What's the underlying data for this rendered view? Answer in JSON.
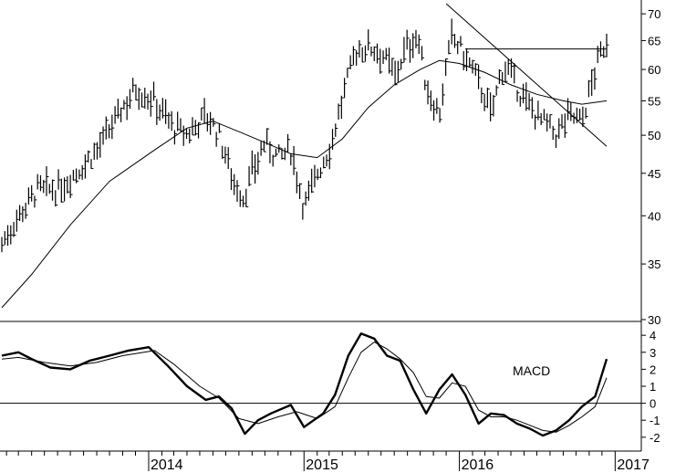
{
  "chart_data": [
    {
      "type": "ohlc",
      "title": "",
      "yscale": "log",
      "ylim": [
        30,
        72
      ],
      "yticks": [
        30,
        35,
        40,
        45,
        50,
        55,
        60,
        65,
        70
      ],
      "x_start": "2013-01-21",
      "x_end": "2016-12-12",
      "year_labels": [
        "2014",
        "2015",
        "2016",
        "2017"
      ],
      "year_dates": [
        "2014-01-01",
        "2015-01-01",
        "2016-01-01",
        "2017-01-01"
      ],
      "series": [
        {
          "name": "",
          "style": "price-bars",
          "points": [
            [
              "2013-01-21",
              37
            ],
            [
              "2013-03-01",
              40
            ],
            [
              "2013-04-15",
              43
            ],
            [
              "2013-06-01",
              43
            ],
            [
              "2013-08-01",
              46
            ],
            [
              "2013-09-15",
              49
            ],
            [
              "2013-11-01",
              54
            ],
            [
              "2013-12-01",
              57
            ],
            [
              "2014-01-15",
              55
            ],
            [
              "2014-03-01",
              51
            ],
            [
              "2014-04-01",
              50
            ],
            [
              "2014-05-15",
              53
            ],
            [
              "2014-06-15",
              50
            ],
            [
              "2014-07-20",
              44
            ],
            [
              "2014-08-10",
              42
            ],
            [
              "2014-09-01",
              45
            ],
            [
              "2014-10-01",
              49
            ],
            [
              "2014-11-01",
              47
            ],
            [
              "2014-12-01",
              48
            ],
            [
              "2015-01-01",
              41
            ],
            [
              "2015-02-01",
              45
            ],
            [
              "2015-03-01",
              48
            ],
            [
              "2015-04-01",
              55
            ],
            [
              "2015-05-01",
              63
            ],
            [
              "2015-06-01",
              64
            ],
            [
              "2015-07-01",
              63
            ],
            [
              "2015-08-01",
              59
            ],
            [
              "2015-09-01",
              64
            ],
            [
              "2015-09-25",
              66
            ],
            [
              "2015-10-15",
              57
            ],
            [
              "2015-11-15",
              53
            ],
            [
              "2015-12-15",
              66
            ],
            [
              "2016-01-15",
              62
            ],
            [
              "2016-02-15",
              58
            ],
            [
              "2016-03-15",
              53
            ],
            [
              "2016-04-15",
              61
            ],
            [
              "2016-05-15",
              57
            ],
            [
              "2016-06-15",
              54
            ],
            [
              "2016-07-15",
              52
            ],
            [
              "2016-08-15",
              50
            ],
            [
              "2016-09-15",
              53
            ],
            [
              "2016-10-15",
              52
            ],
            [
              "2016-11-01",
              56
            ],
            [
              "2016-11-15",
              60
            ],
            [
              "2016-12-01",
              63
            ],
            [
              "2016-12-12",
              65
            ]
          ]
        },
        {
          "name": "",
          "style": "moving-average",
          "points": [
            [
              "2013-01-21",
              31
            ],
            [
              "2013-04-01",
              34
            ],
            [
              "2013-07-01",
              39
            ],
            [
              "2013-10-01",
              44
            ],
            [
              "2014-01-15",
              48
            ],
            [
              "2014-04-01",
              51
            ],
            [
              "2014-06-01",
              52
            ],
            [
              "2014-08-01",
              50.5
            ],
            [
              "2014-10-01",
              49
            ],
            [
              "2014-12-01",
              47.5
            ],
            [
              "2015-02-01",
              47
            ],
            [
              "2015-04-01",
              49.5
            ],
            [
              "2015-06-01",
              54
            ],
            [
              "2015-08-01",
              57.5
            ],
            [
              "2015-10-01",
              60
            ],
            [
              "2015-11-15",
              61.5
            ],
            [
              "2016-01-01",
              61
            ],
            [
              "2016-03-01",
              59.5
            ],
            [
              "2016-05-01",
              57.5
            ],
            [
              "2016-07-01",
              56
            ],
            [
              "2016-09-01",
              55
            ],
            [
              "2016-10-15",
              54.5
            ],
            [
              "2016-12-12",
              55
            ]
          ]
        },
        {
          "name": "",
          "style": "trendline",
          "points": [
            [
              "2015-12-01",
              72
            ],
            [
              "2016-12-12",
              48.5
            ]
          ]
        },
        {
          "name": "",
          "style": "horizontal-line",
          "points": [
            [
              "2016-01-15",
              63.5
            ],
            [
              "2016-12-12",
              63.5
            ]
          ]
        }
      ]
    },
    {
      "type": "line",
      "title": "MACD",
      "ylim": [
        -2.6,
        4.6
      ],
      "yticks": [
        -2,
        -1,
        0,
        1,
        2,
        3,
        4
      ],
      "zero_line": true,
      "series": [
        {
          "name": "",
          "style": "macd",
          "points": [
            [
              "2013-01-21",
              2.8
            ],
            [
              "2013-03-01",
              3.0
            ],
            [
              "2013-04-01",
              2.6
            ],
            [
              "2013-05-15",
              2.1
            ],
            [
              "2013-07-01",
              2.0
            ],
            [
              "2013-08-15",
              2.5
            ],
            [
              "2013-10-01",
              2.8
            ],
            [
              "2013-11-15",
              3.1
            ],
            [
              "2014-01-01",
              3.3
            ],
            [
              "2014-02-15",
              2.2
            ],
            [
              "2014-04-01",
              1.0
            ],
            [
              "2014-05-15",
              0.2
            ],
            [
              "2014-06-15",
              0.4
            ],
            [
              "2014-07-15",
              -0.3
            ],
            [
              "2014-08-15",
              -1.8
            ],
            [
              "2014-09-15",
              -1.0
            ],
            [
              "2014-10-15",
              -0.6
            ],
            [
              "2014-12-01",
              -0.1
            ],
            [
              "2015-01-01",
              -1.4
            ],
            [
              "2015-02-15",
              -0.6
            ],
            [
              "2015-03-15",
              0.5
            ],
            [
              "2015-04-15",
              2.8
            ],
            [
              "2015-05-15",
              4.1
            ],
            [
              "2015-06-15",
              3.8
            ],
            [
              "2015-07-15",
              2.8
            ],
            [
              "2015-08-15",
              2.5
            ],
            [
              "2015-09-15",
              0.8
            ],
            [
              "2015-10-15",
              -0.6
            ],
            [
              "2015-11-15",
              0.8
            ],
            [
              "2015-12-15",
              1.7
            ],
            [
              "2016-01-15",
              0.5
            ],
            [
              "2016-02-15",
              -1.2
            ],
            [
              "2016-03-15",
              -0.6
            ],
            [
              "2016-04-15",
              -0.7
            ],
            [
              "2016-05-15",
              -1.2
            ],
            [
              "2016-06-15",
              -1.5
            ],
            [
              "2016-07-15",
              -1.9
            ],
            [
              "2016-08-15",
              -1.6
            ],
            [
              "2016-09-15",
              -1.0
            ],
            [
              "2016-10-15",
              -0.2
            ],
            [
              "2016-11-15",
              0.4
            ],
            [
              "2016-12-12",
              2.6
            ]
          ]
        },
        {
          "name": "",
          "style": "signal",
          "points": [
            [
              "2013-01-21",
              2.6
            ],
            [
              "2013-03-01",
              2.7
            ],
            [
              "2013-05-01",
              2.4
            ],
            [
              "2013-07-01",
              2.2
            ],
            [
              "2013-09-01",
              2.4
            ],
            [
              "2013-11-01",
              2.8
            ],
            [
              "2014-01-15",
              3.1
            ],
            [
              "2014-03-01",
              2.3
            ],
            [
              "2014-05-01",
              1.0
            ],
            [
              "2014-06-15",
              0.3
            ],
            [
              "2014-08-01",
              -0.9
            ],
            [
              "2014-09-15",
              -1.2
            ],
            [
              "2014-11-01",
              -0.8
            ],
            [
              "2014-12-15",
              -0.5
            ],
            [
              "2015-02-01",
              -0.9
            ],
            [
              "2015-03-15",
              -0.2
            ],
            [
              "2015-04-15",
              1.5
            ],
            [
              "2015-05-15",
              3.0
            ],
            [
              "2015-06-15",
              3.6
            ],
            [
              "2015-07-15",
              3.2
            ],
            [
              "2015-08-15",
              2.6
            ],
            [
              "2015-09-15",
              1.8
            ],
            [
              "2015-10-15",
              0.4
            ],
            [
              "2015-11-15",
              0.3
            ],
            [
              "2015-12-15",
              1.2
            ],
            [
              "2016-01-15",
              1.0
            ],
            [
              "2016-02-15",
              -0.4
            ],
            [
              "2016-03-15",
              -0.8
            ],
            [
              "2016-04-15",
              -0.8
            ],
            [
              "2016-05-15",
              -1.0
            ],
            [
              "2016-06-15",
              -1.3
            ],
            [
              "2016-07-15",
              -1.6
            ],
            [
              "2016-08-15",
              -1.7
            ],
            [
              "2016-09-15",
              -1.3
            ],
            [
              "2016-10-15",
              -0.8
            ],
            [
              "2016-11-15",
              -0.2
            ],
            [
              "2016-12-12",
              1.5
            ]
          ]
        }
      ]
    }
  ]
}
